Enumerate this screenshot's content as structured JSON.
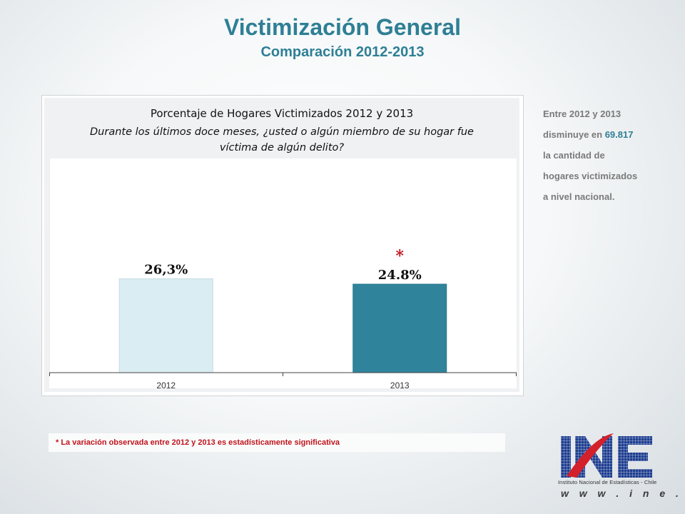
{
  "slide": {
    "title": "Victimización General",
    "subtitle": "Comparación 2012-2013"
  },
  "side_note": {
    "line1": "Entre 2012 y 2013",
    "line2_prefix": "disminuye en ",
    "line2_value": "69.817",
    "line3": "la cantidad de",
    "line4": "hogares victimizados",
    "line5": "a nivel nacional."
  },
  "footnote": "* La variación observada entre 2012 y 2013 es estadísticamente  significativa",
  "logo": {
    "letters": "INE",
    "caption": "Instituto Nacional de Estadísticas - Chile",
    "url": "w w w . i n e . c l"
  },
  "colors": {
    "title": "#2e7f95",
    "bar_2012": "#daedf3",
    "bar_2013": "#2f849c",
    "significance": "#c0141c"
  },
  "chart_data": {
    "type": "bar",
    "title": "Porcentaje de Hogares Victimizados 2012 y 2013",
    "question_line1": "Durante los últimos doce meses, ¿usted o algún miembro de su  hogar fue",
    "question_line2": "víctima de algún delito?",
    "categories": [
      "2012",
      "2013"
    ],
    "values": [
      26.3,
      24.8
    ],
    "data_labels": [
      "26,3%",
      "24.8%"
    ],
    "significance_marker": "*",
    "ylim": [
      0,
      60
    ],
    "grid": false,
    "legend": "none"
  }
}
